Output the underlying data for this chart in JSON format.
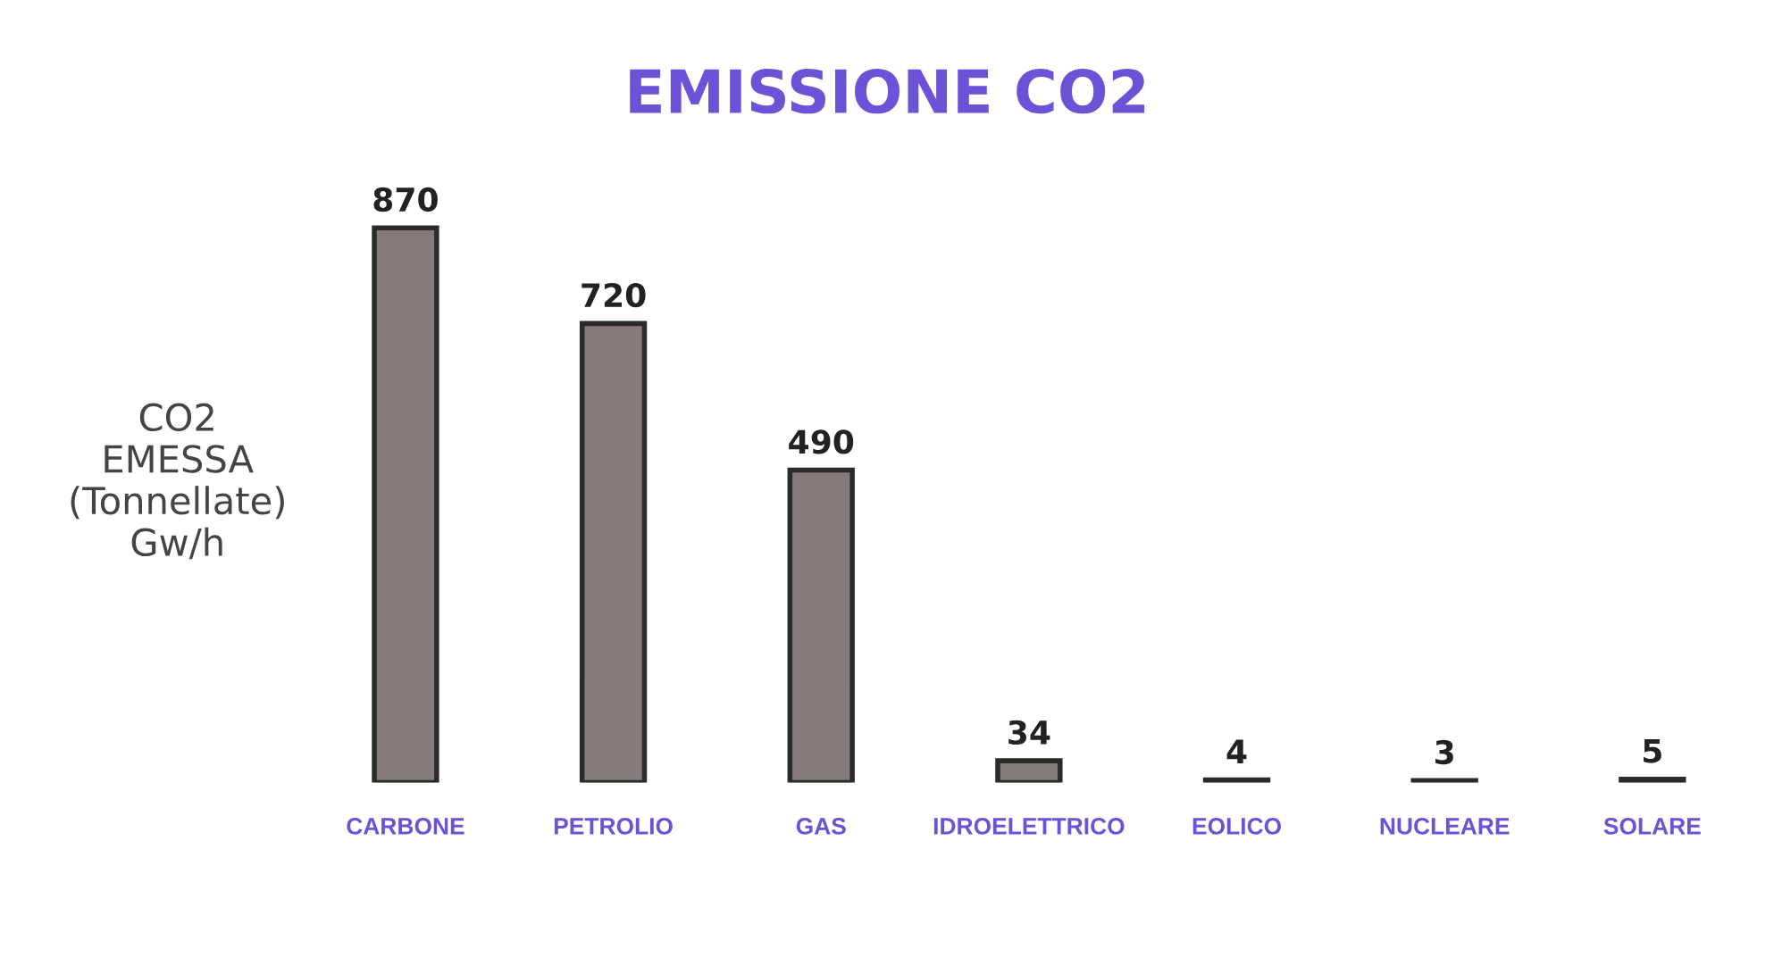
{
  "chart_data": {
    "type": "bar",
    "title": "EMISSIONE CO2",
    "ylabel": "CO2\nEMESSA\n(Tonnellate)\nGw/h",
    "categories": [
      "CARBONE",
      "PETROLIO",
      "GAS",
      "IDROELETTRICO",
      "EOLICO",
      "NUCLEARE",
      "SOLARE"
    ],
    "values": [
      870,
      720,
      490,
      34,
      4,
      3,
      5
    ],
    "color": "#857b7b",
    "data_labels": true,
    "grid": false,
    "legend": false
  }
}
